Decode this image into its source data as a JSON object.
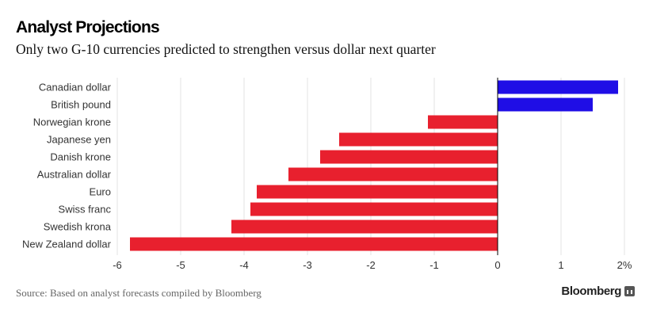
{
  "header": {
    "title": "Analyst Projections",
    "subtitle": "Only two G-10 currencies predicted to strengthen versus dollar next quarter"
  },
  "footer": {
    "source": "Source: Based on analyst forecasts compiled by Bloomberg",
    "brand": "Bloomberg",
    "brand_icon": "bloomberg-terminal-icon"
  },
  "chart_data": {
    "type": "bar",
    "orientation": "horizontal",
    "categories": [
      "Canadian dollar",
      "British pound",
      "Norwegian krone",
      "Japanese yen",
      "Danish krone",
      "Australian dollar",
      "Euro",
      "Swiss franc",
      "Swedish krona",
      "New Zealand dollar"
    ],
    "values": [
      1.9,
      1.5,
      -1.1,
      -2.5,
      -2.8,
      -3.3,
      -3.8,
      -3.9,
      -4.2,
      -5.8
    ],
    "xlim": [
      -6,
      2
    ],
    "xticks": [
      -6,
      -5,
      -4,
      -3,
      -2,
      -1,
      0,
      1,
      2
    ],
    "xtick_labels": [
      "-6",
      "-5",
      "-4",
      "-3",
      "-2",
      "-1",
      "0",
      "1",
      "2%"
    ],
    "grid": "vertical",
    "colors": {
      "positive": "#1f0ee6",
      "negative": "#e8202e",
      "grid": "#e3e3e3",
      "zero_line": "#000000"
    }
  }
}
